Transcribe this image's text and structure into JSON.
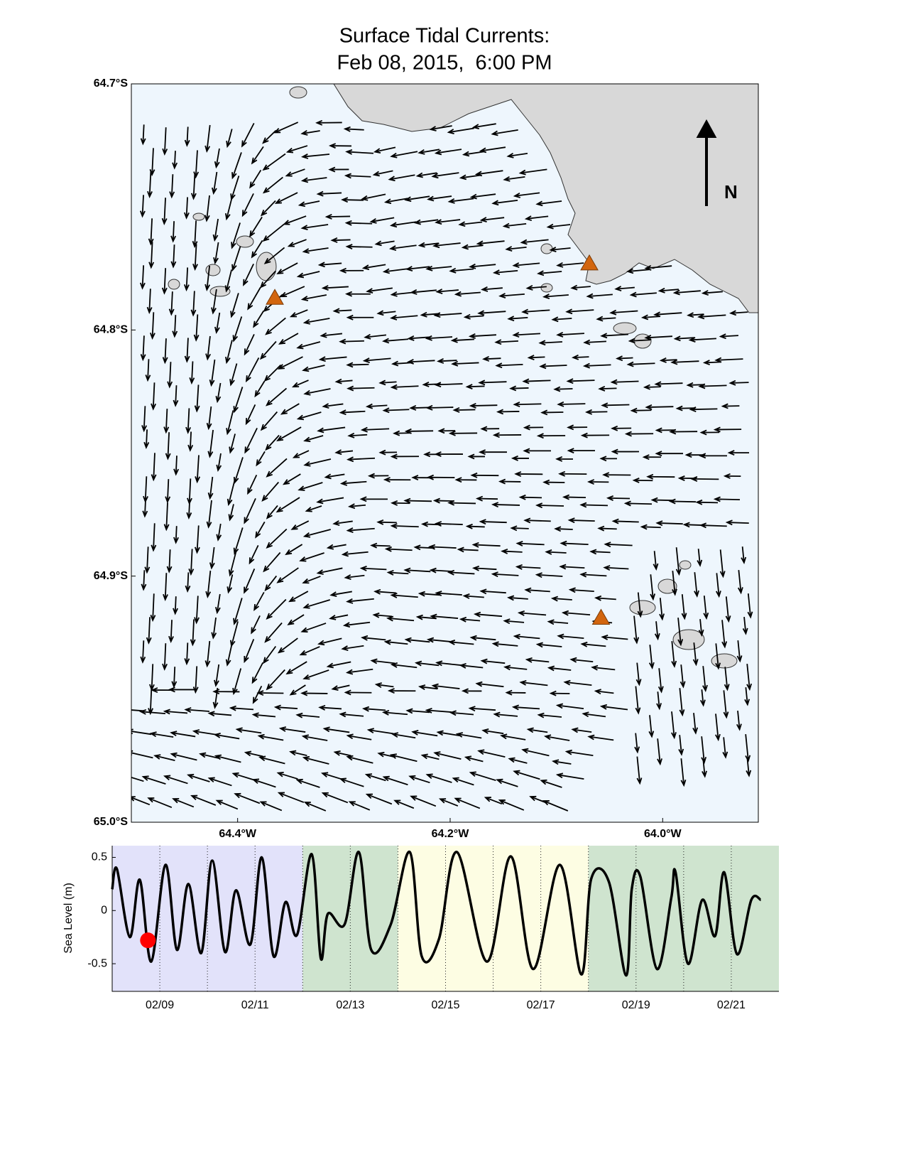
{
  "chart_data": [
    {
      "type": "map",
      "title": [
        "Surface Tidal Currents:",
        "Feb 08, 2015,  6:00 PM"
      ],
      "xlim": [
        -64.5,
        -63.91
      ],
      "ylim": [
        -65.0,
        -64.7
      ],
      "xticks": [
        {
          "value": -64.4,
          "label": "64.4°W"
        },
        {
          "value": -64.2,
          "label": "64.2°W"
        },
        {
          "value": -64.0,
          "label": "64.0°W"
        }
      ],
      "yticks": [
        {
          "value": -64.7,
          "label": "64.7°S"
        },
        {
          "value": -64.8,
          "label": "64.8°S"
        },
        {
          "value": -64.9,
          "label": "64.9°S"
        },
        {
          "value": -65.0,
          "label": "65.0°S"
        }
      ],
      "north_label": "N",
      "stations": {
        "color": "#d2650e",
        "lon": [
          -64.365,
          -64.069,
          -64.058
        ],
        "lat": [
          -64.787,
          -64.773,
          -64.917
        ]
      }
    },
    {
      "type": "line",
      "ylabel": "Sea Level (m)",
      "xlim": [
        8.0,
        22.0
      ],
      "ylim": [
        -0.76,
        0.61
      ],
      "xticks": [
        {
          "value": 9,
          "label": "02/09"
        },
        {
          "value": 11,
          "label": "02/11"
        },
        {
          "value": 13,
          "label": "02/13"
        },
        {
          "value": 15,
          "label": "02/15"
        },
        {
          "value": 17,
          "label": "02/17"
        },
        {
          "value": 19,
          "label": "02/19"
        },
        {
          "value": 21,
          "label": "02/21"
        }
      ],
      "xminorticks": [
        10,
        12,
        14,
        16,
        18,
        20
      ],
      "yticks": [
        0.5,
        0,
        -0.5
      ],
      "grid": true,
      "bands": [
        {
          "from": 8.0,
          "to": 12.0,
          "color": "#e2e2fa"
        },
        {
          "from": 12.0,
          "to": 14.0,
          "color": "#cfe4cf"
        },
        {
          "from": 14.0,
          "to": 18.0,
          "color": "#fdfde3"
        },
        {
          "from": 18.0,
          "to": 22.0,
          "color": "#cfe4cf"
        }
      ],
      "series": [
        {
          "color": "#000000",
          "x": [
            8.0,
            8.1,
            8.37,
            8.58,
            8.82,
            9.12,
            9.36,
            9.6,
            9.87,
            10.1,
            10.37,
            10.6,
            10.9,
            11.14,
            11.39,
            11.64,
            11.88,
            12.19,
            12.38,
            12.53,
            12.88,
            13.18,
            13.44,
            13.85,
            14.25,
            14.5,
            14.86,
            15.24,
            15.87,
            16.37,
            16.84,
            17.4,
            17.85,
            18.06,
            18.43,
            18.79,
            18.91,
            19.09,
            19.44,
            19.74,
            19.83,
            20.09,
            20.39,
            20.66,
            20.85,
            21.12,
            21.42,
            21.62
          ],
          "values": [
            0.2,
            0.39,
            -0.25,
            0.29,
            -0.48,
            0.43,
            -0.37,
            0.25,
            -0.4,
            0.47,
            -0.39,
            0.19,
            -0.32,
            0.5,
            -0.43,
            0.08,
            -0.23,
            0.53,
            -0.45,
            -0.03,
            -0.13,
            0.55,
            -0.37,
            -0.13,
            0.55,
            -0.43,
            -0.27,
            0.55,
            -0.48,
            0.51,
            -0.55,
            0.43,
            -0.6,
            0.3,
            0.27,
            -0.61,
            0.2,
            0.32,
            -0.55,
            0.12,
            0.36,
            -0.5,
            0.1,
            -0.24,
            0.36,
            -0.41,
            0.1,
            0.1
          ]
        },
        {
          "color": "#ff0000",
          "x": [
            8.75
          ],
          "values": [
            -0.28
          ]
        }
      ]
    }
  ]
}
